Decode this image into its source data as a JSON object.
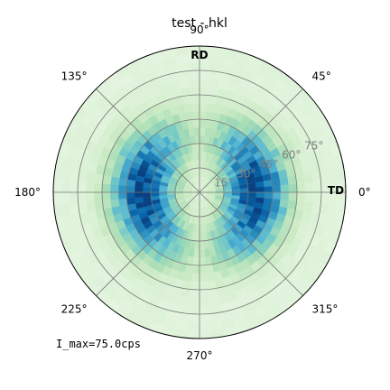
{
  "chart_data": {
    "type": "heatmap",
    "projection": "polar",
    "title": "test - hkl",
    "angle_ticks": [
      {
        "angle": 0,
        "label": "0°"
      },
      {
        "angle": 45,
        "label": "45°"
      },
      {
        "angle": 90,
        "label": "90°"
      },
      {
        "angle": 135,
        "label": "135°"
      },
      {
        "angle": 180,
        "label": "180°"
      },
      {
        "angle": 225,
        "label": "225°"
      },
      {
        "angle": 270,
        "label": "270°"
      },
      {
        "angle": 315,
        "label": "315°"
      }
    ],
    "radial_ticks": [
      {
        "value": 15,
        "label": "15°"
      },
      {
        "value": 30,
        "label": "30°"
      },
      {
        "value": 45,
        "label": "45°"
      },
      {
        "value": 60,
        "label": "60°"
      },
      {
        "value": 75,
        "label": "75°"
      }
    ],
    "radial_range": [
      0,
      90
    ],
    "direction_labels": {
      "rd": "RD",
      "td": "TD"
    },
    "imax_text": "I_max=75.0cps",
    "intensity_max": 75.0,
    "colormap": "GnBu",
    "grid": true,
    "bins": {
      "angular_step": 5,
      "radial_step": 5
    }
  }
}
